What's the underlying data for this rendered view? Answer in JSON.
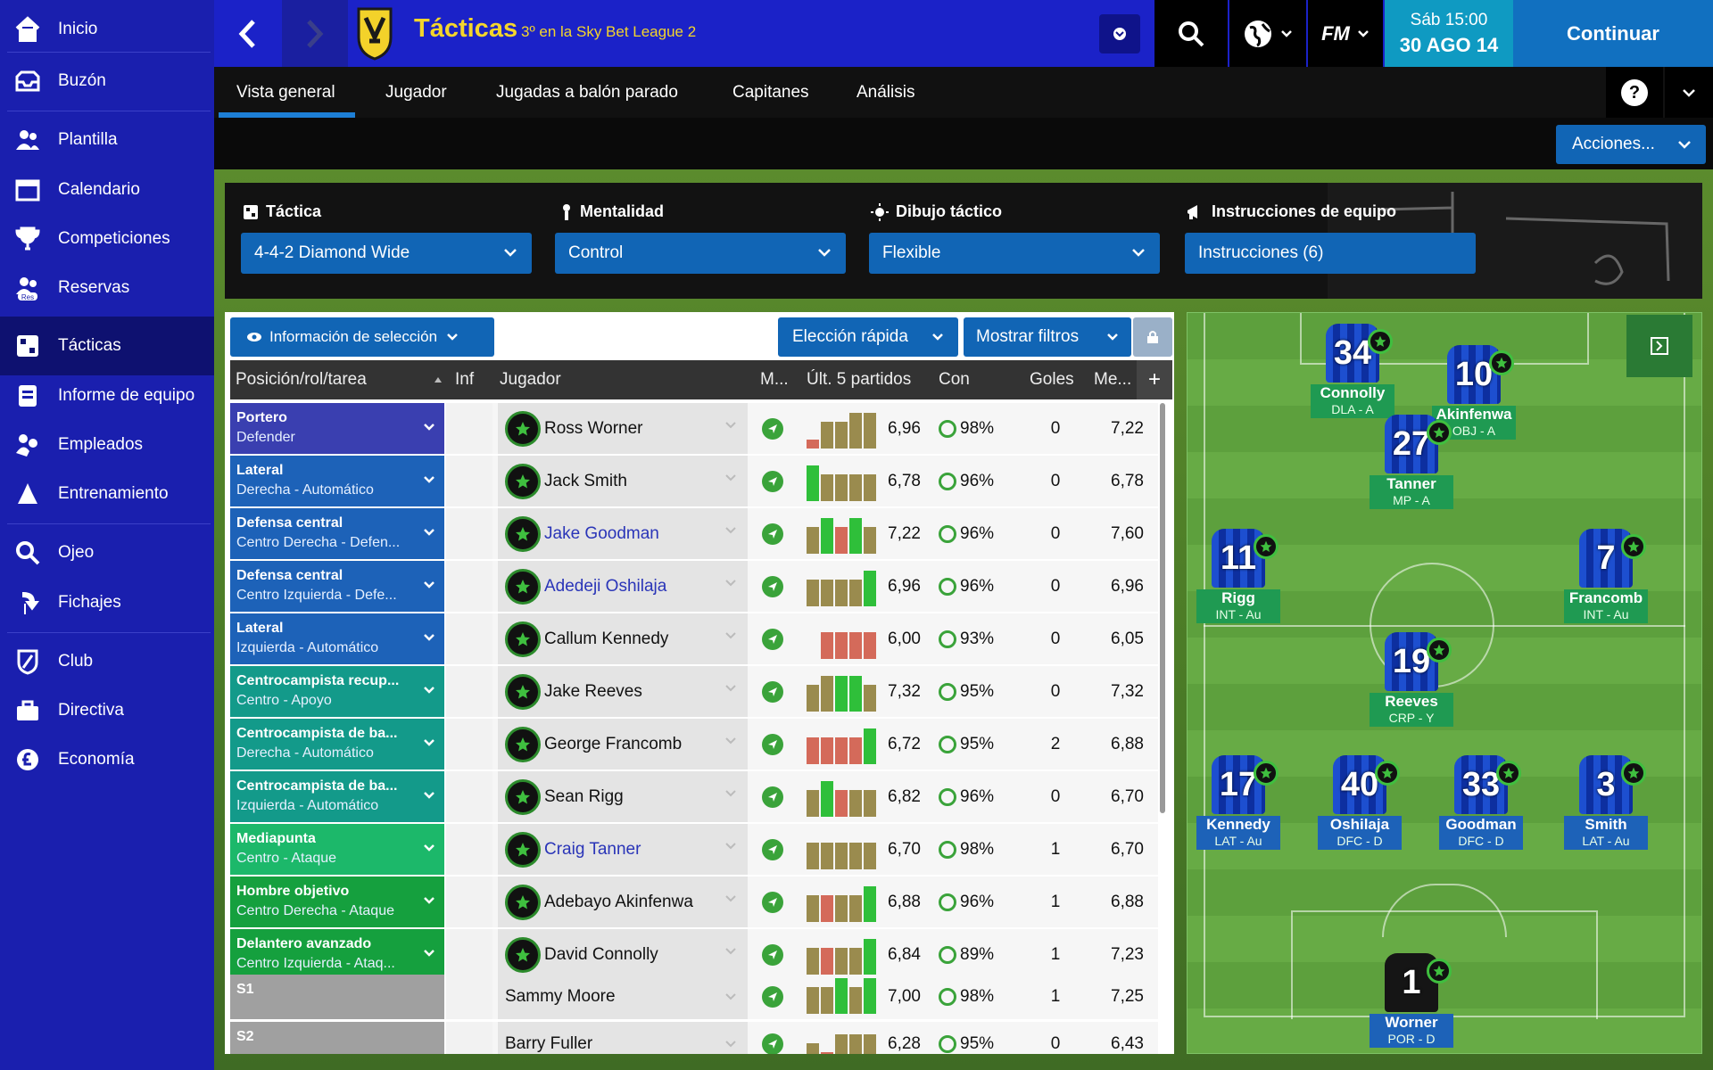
{
  "sidebar": {
    "items": [
      {
        "label": "Inicio",
        "icon": "home-icon",
        "active": false
      },
      {
        "label": "Buzón",
        "icon": "inbox-icon",
        "active": false
      },
      {
        "label": "Plantilla",
        "icon": "squad-icon",
        "active": false
      },
      {
        "label": "Calendario",
        "icon": "calendar-icon",
        "active": false
      },
      {
        "label": "Competiciones",
        "icon": "trophy-icon",
        "active": false
      },
      {
        "label": "Reservas",
        "icon": "reserves-icon",
        "active": false
      },
      {
        "label": "Tácticas",
        "icon": "tactics-icon",
        "active": true
      },
      {
        "label": "Informe de equipo",
        "icon": "team-report-icon",
        "active": false
      },
      {
        "label": "Empleados",
        "icon": "staff-icon",
        "active": false
      },
      {
        "label": "Entrenamiento",
        "icon": "training-icon",
        "active": false
      },
      {
        "label": "Ojeo",
        "icon": "scouting-icon",
        "active": false
      },
      {
        "label": "Fichajes",
        "icon": "transfers-icon",
        "active": false
      },
      {
        "label": "Club",
        "icon": "club-icon",
        "active": false
      },
      {
        "label": "Directiva",
        "icon": "board-icon",
        "active": false
      },
      {
        "label": "Economía",
        "icon": "finances-icon",
        "active": false
      }
    ],
    "reserves_badge": "Res"
  },
  "header": {
    "title": "Tácticas",
    "subtitle": "3º en la Sky Bet League 2",
    "fm_logo": "FM",
    "date_day": "Sáb 15:00",
    "date_full": "30 AGO 14",
    "continue_label": "Continuar",
    "help_label": "?"
  },
  "tabs": [
    "Vista general",
    "Jugador",
    "Jugadas a balón parado",
    "Capitanes",
    "Análisis"
  ],
  "actions_label": "Acciones...",
  "tactic_panel": {
    "tactic": {
      "heading": "Táctica",
      "value": "4-4-2 Diamond Wide"
    },
    "mentality": {
      "heading": "Mentalidad",
      "value": "Control"
    },
    "shape": {
      "heading": "Dibujo táctico",
      "value": "Flexible"
    },
    "instructions": {
      "heading": "Instrucciones de equipo",
      "value": "Instrucciones (6)"
    }
  },
  "table": {
    "selection_info_label": "Información de selección",
    "quick_pick_label": "Elección rápida",
    "filters_label": "Mostrar filtros",
    "columns": [
      "Posición/rol/tarea",
      "Inf",
      "Jugador",
      "M...",
      "Últ. 5 partidos",
      "Con",
      "Goles",
      "Me...",
      "+"
    ],
    "rows": [
      {
        "role": "Portero",
        "duty": "Defender",
        "player": "Ross Worner",
        "link": false,
        "bars": [
          1,
          3,
          3,
          4,
          4
        ],
        "barcol": [
          "r",
          "o",
          "o",
          "o",
          "o"
        ],
        "rating": "6,96",
        "cond": "98%",
        "goals": "0",
        "avg": "7,22",
        "color": "#3a3fb0"
      },
      {
        "role": "Lateral",
        "duty": "Derecha - Automático",
        "player": "Jack Smith",
        "link": false,
        "bars": [
          4,
          3,
          3,
          3,
          3
        ],
        "barcol": [
          "g",
          "o",
          "o",
          "o",
          "o"
        ],
        "rating": "6,78",
        "cond": "96%",
        "goals": "0",
        "avg": "6,78",
        "color": "#1d62b8"
      },
      {
        "role": "Defensa central",
        "duty": "Centro Derecha - Defen...",
        "player": "Jake Goodman",
        "link": true,
        "bars": [
          3,
          4,
          3,
          4,
          3
        ],
        "barcol": [
          "o",
          "g",
          "r",
          "g",
          "o"
        ],
        "rating": "7,22",
        "cond": "96%",
        "goals": "0",
        "avg": "7,60",
        "color": "#1d62b8"
      },
      {
        "role": "Defensa central",
        "duty": "Centro Izquierda - Defe...",
        "player": "Adedeji Oshilaja",
        "link": true,
        "bars": [
          3,
          3,
          3,
          3,
          4
        ],
        "barcol": [
          "o",
          "o",
          "o",
          "o",
          "g"
        ],
        "rating": "6,96",
        "cond": "96%",
        "goals": "0",
        "avg": "6,96",
        "color": "#1d62b8"
      },
      {
        "role": "Lateral",
        "duty": "Izquierda - Automático",
        "player": "Callum Kennedy",
        "link": false,
        "bars": [
          0,
          3,
          3,
          3,
          3
        ],
        "barcol": [
          "o",
          "r",
          "r",
          "r",
          "r"
        ],
        "rating": "6,00",
        "cond": "93%",
        "goals": "0",
        "avg": "6,05",
        "color": "#1d62b8"
      },
      {
        "role": "Centrocampista recup...",
        "duty": "Centro - Apoyo",
        "player": "Jake Reeves",
        "link": false,
        "bars": [
          3,
          4,
          4,
          4,
          3
        ],
        "barcol": [
          "o",
          "o",
          "g",
          "g",
          "o"
        ],
        "rating": "7,32",
        "cond": "95%",
        "goals": "0",
        "avg": "7,32",
        "color": "#139a8a"
      },
      {
        "role": "Centrocampista de ba...",
        "duty": "Derecha - Automático",
        "player": "George Francomb",
        "link": false,
        "bars": [
          3,
          3,
          3,
          3,
          4
        ],
        "barcol": [
          "r",
          "r",
          "r",
          "r",
          "g"
        ],
        "rating": "6,72",
        "cond": "95%",
        "goals": "2",
        "avg": "6,88",
        "color": "#139a8a"
      },
      {
        "role": "Centrocampista de ba...",
        "duty": "Izquierda - Automático",
        "player": "Sean Rigg",
        "link": false,
        "bars": [
          3,
          4,
          3,
          3,
          3
        ],
        "barcol": [
          "o",
          "g",
          "r",
          "o",
          "o"
        ],
        "rating": "6,82",
        "cond": "96%",
        "goals": "0",
        "avg": "6,70",
        "color": "#139a8a"
      },
      {
        "role": "Mediapunta",
        "duty": "Centro - Ataque",
        "player": "Craig Tanner",
        "link": true,
        "bars": [
          3,
          3,
          3,
          3,
          3
        ],
        "barcol": [
          "o",
          "o",
          "o",
          "o",
          "o"
        ],
        "rating": "6,70",
        "cond": "98%",
        "goals": "1",
        "avg": "6,70",
        "color": "#1cb86a"
      },
      {
        "role": "Hombre objetivo",
        "duty": "Centro Derecha - Ataque",
        "player": "Adebayo Akinfenwa",
        "link": false,
        "bars": [
          3,
          3,
          3,
          3,
          4
        ],
        "barcol": [
          "o",
          "r",
          "o",
          "o",
          "g"
        ],
        "rating": "6,88",
        "cond": "96%",
        "goals": "1",
        "avg": "6,88",
        "color": "#15a03e"
      },
      {
        "role": "Delantero avanzado",
        "duty": "Centro Izquierda - Ataq...",
        "player": "David Connolly",
        "link": false,
        "bars": [
          3,
          3,
          3,
          3,
          4
        ],
        "barcol": [
          "o",
          "r",
          "o",
          "o",
          "g"
        ],
        "rating": "6,84",
        "cond": "89%",
        "goals": "1",
        "avg": "7,23",
        "color": "#15a03e"
      },
      {
        "role": "S1",
        "duty": "",
        "player": "Sammy Moore",
        "link": false,
        "bars": [
          3,
          3,
          4,
          3,
          4
        ],
        "barcol": [
          "o",
          "o",
          "g",
          "o",
          "g"
        ],
        "rating": "7,00",
        "cond": "98%",
        "goals": "1",
        "avg": "7,25",
        "color": "#a0a0a0"
      },
      {
        "role": "S2",
        "duty": "",
        "player": "Barry Fuller",
        "link": false,
        "bars": [
          2,
          1,
          3,
          3,
          3
        ],
        "barcol": [
          "o",
          "r",
          "o",
          "o",
          "o"
        ],
        "rating": "6,28",
        "cond": "95%",
        "goals": "0",
        "avg": "6,43",
        "color": "#a0a0a0"
      }
    ]
  },
  "pitch": {
    "players": [
      {
        "num": "34",
        "name": "Connolly",
        "role": "DLA - A",
        "label": "green"
      },
      {
        "num": "10",
        "name": "Akinfenwa",
        "role": "OBJ - A",
        "label": "green"
      },
      {
        "num": "27",
        "name": "Tanner",
        "role": "MP - A",
        "label": "green"
      },
      {
        "num": "11",
        "name": "Rigg",
        "role": "INT - Au",
        "label": "green"
      },
      {
        "num": "7",
        "name": "Francomb",
        "role": "INT - Au",
        "label": "green"
      },
      {
        "num": "19",
        "name": "Reeves",
        "role": "CRP - Y",
        "label": "green"
      },
      {
        "num": "17",
        "name": "Kennedy",
        "role": "LAT - Au",
        "label": "blue"
      },
      {
        "num": "40",
        "name": "Oshilaja",
        "role": "DFC - D",
        "label": "blue"
      },
      {
        "num": "33",
        "name": "Goodman",
        "role": "DFC - D",
        "label": "blue"
      },
      {
        "num": "3",
        "name": "Smith",
        "role": "LAT - Au",
        "label": "blue"
      },
      {
        "num": "1",
        "name": "Worner",
        "role": "POR - D",
        "label": "blue",
        "gk": true
      }
    ]
  },
  "colors": {
    "sidebar": "#1a1fae",
    "topbar": "#1b22c8",
    "accent": "#1165b5",
    "datebox": "#0f9ac2",
    "continue": "#1170c0"
  }
}
